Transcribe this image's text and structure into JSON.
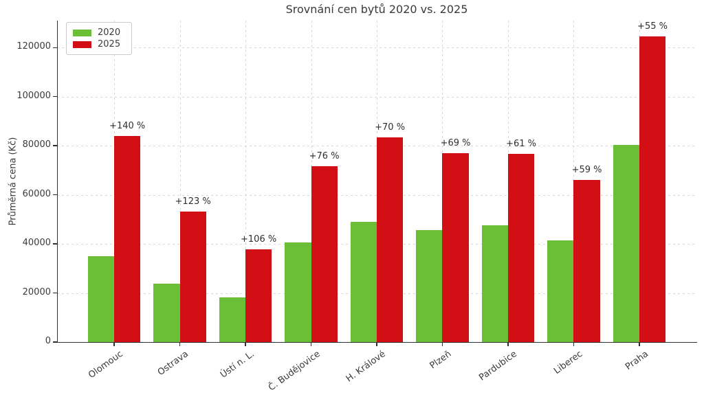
{
  "chart_data": {
    "type": "bar",
    "title": "Srovnání cen bytů 2020 vs. 2025",
    "xlabel": "",
    "ylabel": "Průměrná cena (Kč)",
    "categories": [
      "Olomouc",
      "Ostrava",
      "Ústí n. L.",
      "Č. Budějovice",
      "H. Králové",
      "Plzeň",
      "Pardubice",
      "Liberec",
      "Praha"
    ],
    "series": [
      {
        "name": "2020",
        "color": "#6abf36",
        "values": [
          35000,
          23800,
          18300,
          40700,
          49000,
          45500,
          47600,
          41500,
          80300
        ]
      },
      {
        "name": "2025",
        "color": "#d20f14",
        "values": [
          84000,
          53100,
          37700,
          71600,
          83300,
          76900,
          76600,
          66000,
          124500
        ]
      }
    ],
    "annotations": [
      "+140 %",
      "+123 %",
      "+106 %",
      "+76 %",
      "+70 %",
      "+69 %",
      "+61 %",
      "+59 %",
      "+55 %"
    ],
    "yticks": [
      0,
      20000,
      40000,
      60000,
      80000,
      100000,
      120000
    ],
    "ytick_labels": [
      "0",
      "20000",
      "40000",
      "60000",
      "80000",
      "100000",
      "120000"
    ],
    "ylim": [
      0,
      131000
    ],
    "grid": "dashed, horizontal and vertical, below bars",
    "legend_position": "upper left",
    "colors": {
      "grid": "#d6d6d6",
      "axis": "#2e2e2e",
      "text": "#3a3a3a",
      "background": "#ffffff"
    }
  }
}
